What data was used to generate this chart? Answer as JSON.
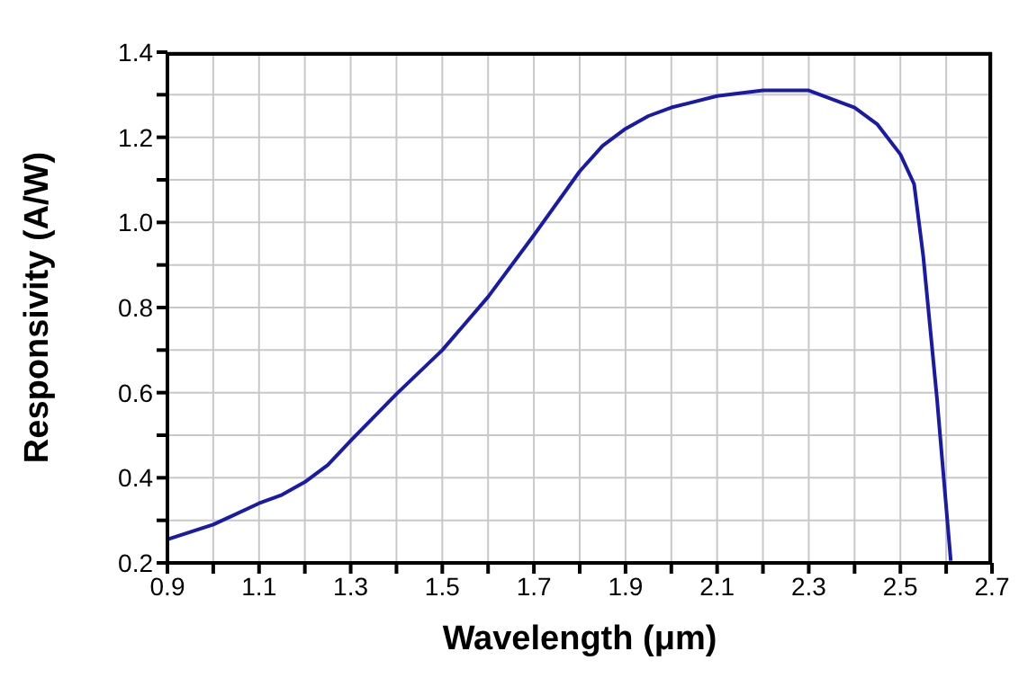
{
  "chart_data": {
    "type": "line",
    "xlabel": "Wavelength (μm)",
    "ylabel": "Responsivity (A/W)",
    "x": [
      0.9,
      1.0,
      1.1,
      1.15,
      1.2,
      1.25,
      1.3,
      1.4,
      1.5,
      1.6,
      1.7,
      1.8,
      1.85,
      1.9,
      1.95,
      2.0,
      2.1,
      2.2,
      2.3,
      2.4,
      2.45,
      2.5,
      2.53,
      2.55,
      2.58,
      2.61
    ],
    "series": [
      {
        "color": "#1a1aa8",
        "values": [
          0.255,
          0.29,
          0.34,
          0.36,
          0.39,
          0.43,
          0.487,
          0.597,
          0.7,
          0.825,
          0.97,
          1.12,
          1.18,
          1.22,
          1.25,
          1.27,
          1.297,
          1.31,
          1.31,
          1.27,
          1.23,
          1.16,
          1.09,
          0.92,
          0.585,
          0.205
        ]
      }
    ],
    "xlim": [
      0.9,
      2.7
    ],
    "xticks": [
      0.9,
      {
        "value": 1.0,
        "label": null
      },
      1.1,
      {
        "value": 1.2,
        "label": null
      },
      1.3,
      {
        "value": 1.4,
        "label": null
      },
      1.5,
      {
        "value": 1.6,
        "label": null
      },
      1.7,
      {
        "value": 1.8,
        "label": null
      },
      1.9,
      {
        "value": 2.0,
        "label": null
      },
      2.1,
      {
        "value": 2.2,
        "label": null
      },
      2.3,
      {
        "value": 2.4,
        "label": null
      },
      2.5,
      {
        "value": 2.6,
        "label": null
      },
      2.7
    ],
    "ylim": [
      0.2,
      1.4
    ],
    "yticks": [
      0.2,
      {
        "value": 0.3,
        "label": null
      },
      0.4,
      {
        "value": 0.5,
        "label": null
      },
      0.6,
      {
        "value": 0.7,
        "label": null
      },
      0.8,
      {
        "value": 0.9,
        "label": null
      },
      {
        "value": 1.0,
        "label": "1.0"
      },
      {
        "value": 1.1,
        "label": null
      },
      1.2,
      {
        "value": 1.3,
        "label": null
      },
      1.4
    ],
    "grid": true,
    "marker": "none",
    "line_style": "solid"
  }
}
